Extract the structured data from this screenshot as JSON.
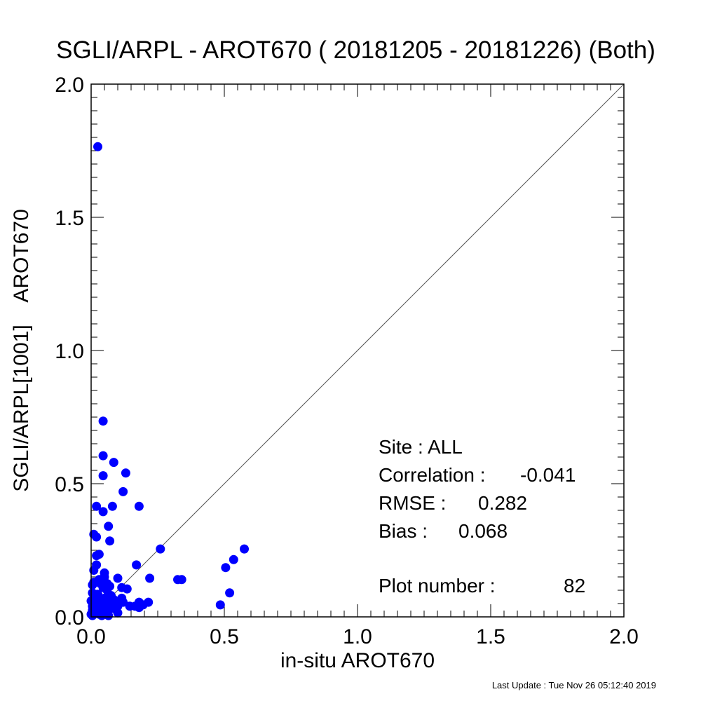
{
  "title": "SGLI/ARPL - AROT670 ( 20181205 - 20181226) (Both)",
  "footer": "Last Update : Tue Nov 26 05:12:40 2019",
  "stats": {
    "site": "Site : ALL",
    "correlation_label": "Correlation :",
    "correlation_value": "-0.041",
    "rmse_label": "RMSE :",
    "rmse_value": "0.282",
    "bias_label": "Bias :",
    "bias_value": "0.068",
    "plot_number_label": "Plot number :",
    "plot_number_value": "82"
  },
  "chart_data": {
    "type": "scatter",
    "title": "SGLI/ARPL - AROT670 ( 20181205 - 20181226) (Both)",
    "xlabel": "in-situ AROT670",
    "ylabel": "SGLI/ARPL[1001]    AROT670",
    "xlim": [
      0,
      2
    ],
    "ylim": [
      0,
      2
    ],
    "xticks": [
      "0.0",
      "0.5",
      "1.0",
      "1.5",
      "2.0"
    ],
    "yticks": [
      "0.0",
      "0.5",
      "1.0",
      "1.5",
      "2.0"
    ],
    "grid": false,
    "one_to_one_line": true,
    "marker_color": "#0000ff",
    "points": [
      [
        0.025,
        1.765
      ],
      [
        0.045,
        0.735
      ],
      [
        0.045,
        0.605
      ],
      [
        0.085,
        0.58
      ],
      [
        0.045,
        0.53
      ],
      [
        0.13,
        0.54
      ],
      [
        0.12,
        0.47
      ],
      [
        0.02,
        0.415
      ],
      [
        0.045,
        0.395
      ],
      [
        0.08,
        0.415
      ],
      [
        0.18,
        0.415
      ],
      [
        0.065,
        0.34
      ],
      [
        0.01,
        0.31
      ],
      [
        0.02,
        0.3
      ],
      [
        0.07,
        0.285
      ],
      [
        0.03,
        0.235
      ],
      [
        0.02,
        0.23
      ],
      [
        0.26,
        0.255
      ],
      [
        0.575,
        0.255
      ],
      [
        0.535,
        0.215
      ],
      [
        0.505,
        0.185
      ],
      [
        0.17,
        0.195
      ],
      [
        0.02,
        0.195
      ],
      [
        0.01,
        0.175
      ],
      [
        0.05,
        0.165
      ],
      [
        0.22,
        0.145
      ],
      [
        0.325,
        0.14
      ],
      [
        0.34,
        0.14
      ],
      [
        0.05,
        0.15
      ],
      [
        0.1,
        0.145
      ],
      [
        0.035,
        0.125
      ],
      [
        0.06,
        0.125
      ],
      [
        0.005,
        0.12
      ],
      [
        0.045,
        0.11
      ],
      [
        0.07,
        0.115
      ],
      [
        0.115,
        0.11
      ],
      [
        0.135,
        0.105
      ],
      [
        0.005,
        0.09
      ],
      [
        0.025,
        0.085
      ],
      [
        0.52,
        0.09
      ],
      [
        0.075,
        0.08
      ],
      [
        0.02,
        0.075
      ],
      [
        0.05,
        0.07
      ],
      [
        0.115,
        0.07
      ],
      [
        0.0,
        0.06
      ],
      [
        0.03,
        0.06
      ],
      [
        0.06,
        0.06
      ],
      [
        0.095,
        0.055
      ],
      [
        0.12,
        0.055
      ],
      [
        0.18,
        0.055
      ],
      [
        0.215,
        0.055
      ],
      [
        0.485,
        0.045
      ],
      [
        0.01,
        0.05
      ],
      [
        0.04,
        0.045
      ],
      [
        0.075,
        0.045
      ],
      [
        0.195,
        0.045
      ],
      [
        0.005,
        0.04
      ],
      [
        0.025,
        0.04
      ],
      [
        0.055,
        0.04
      ],
      [
        0.1,
        0.04
      ],
      [
        0.145,
        0.04
      ],
      [
        0.165,
        0.04
      ],
      [
        0.035,
        0.03
      ],
      [
        0.07,
        0.03
      ],
      [
        0.18,
        0.035
      ],
      [
        0.005,
        0.025
      ],
      [
        0.02,
        0.025
      ],
      [
        0.05,
        0.025
      ],
      [
        0.015,
        0.015
      ],
      [
        0.06,
        0.015
      ],
      [
        0.1,
        0.015
      ],
      [
        0.0,
        0.01
      ],
      [
        0.03,
        0.01
      ],
      [
        0.04,
        0.005
      ],
      [
        0.065,
        0.005
      ],
      [
        0.005,
        0.005
      ],
      [
        0.085,
        0.065
      ],
      [
        0.01,
        0.13
      ],
      [
        0.03,
        0.14
      ],
      [
        0.06,
        0.1
      ],
      [
        0.09,
        0.03
      ],
      [
        0.025,
        0.055
      ]
    ]
  }
}
